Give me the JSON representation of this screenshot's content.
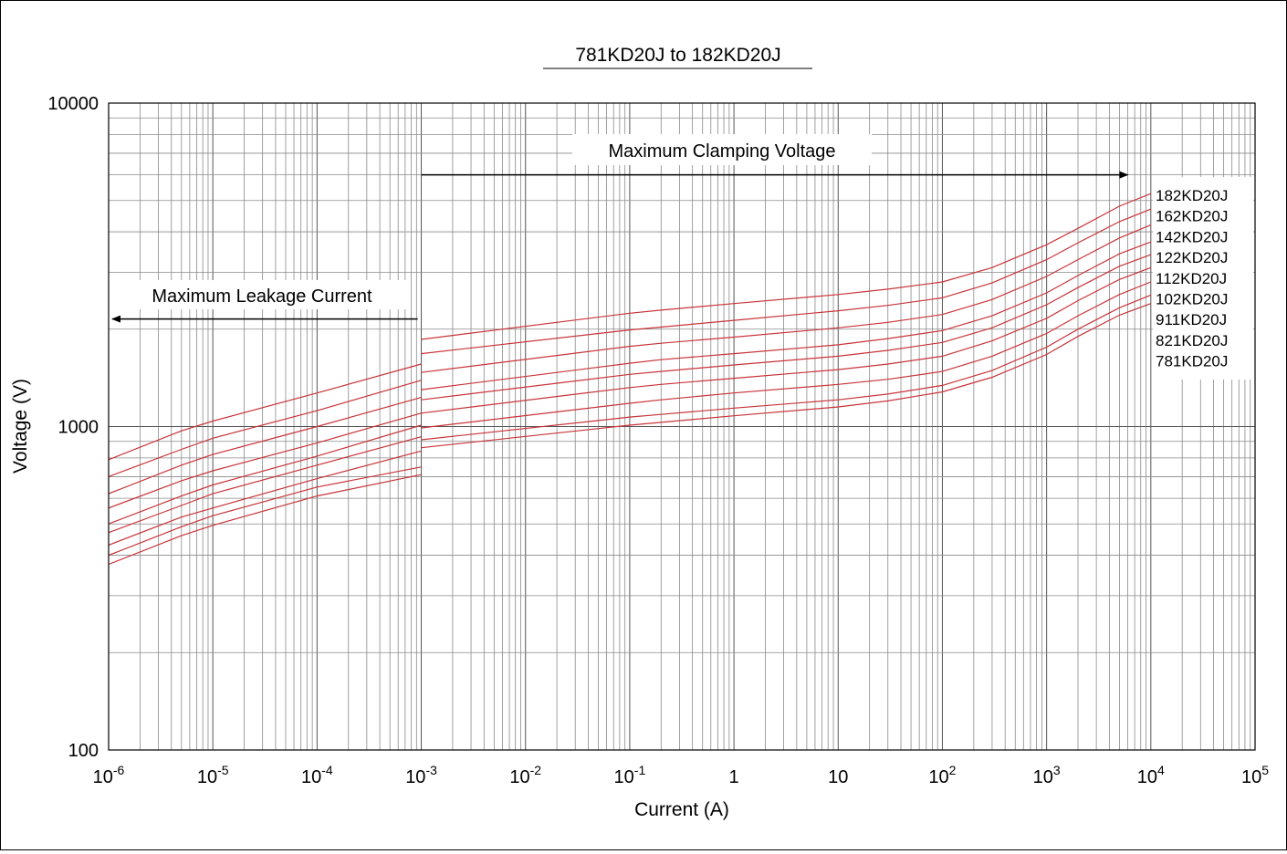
{
  "chart_data": {
    "type": "line",
    "title": "781KD20J to 182KD20J",
    "xlabel": "Current (A)",
    "ylabel": "Voltage (V)",
    "x_scale": "log",
    "y_scale": "log",
    "xlim": [
      1e-06,
      100000
    ],
    "ylim": [
      100,
      10000
    ],
    "grid": true,
    "x_ticks": [
      {
        "value": 1e-06,
        "base": "10",
        "exp": "-6"
      },
      {
        "value": 1e-05,
        "base": "10",
        "exp": "-5"
      },
      {
        "value": 0.0001,
        "base": "10",
        "exp": "-4"
      },
      {
        "value": 0.001,
        "base": "10",
        "exp": "-3"
      },
      {
        "value": 0.01,
        "base": "10",
        "exp": "-2"
      },
      {
        "value": 0.1,
        "base": "10",
        "exp": "-1"
      },
      {
        "value": 1,
        "base": "1",
        "exp": ""
      },
      {
        "value": 10,
        "base": "10",
        "exp": ""
      },
      {
        "value": 100,
        "base": "10",
        "exp": "2"
      },
      {
        "value": 1000,
        "base": "10",
        "exp": "3"
      },
      {
        "value": 10000,
        "base": "10",
        "exp": "4"
      },
      {
        "value": 100000,
        "base": "10",
        "exp": "5"
      }
    ],
    "y_ticks": [
      {
        "value": 100,
        "label": "100"
      },
      {
        "value": 1000,
        "label": "1000"
      },
      {
        "value": 10000,
        "label": "10000"
      }
    ],
    "annotations": {
      "clamping": {
        "text": "Maximum Clamping Voltage",
        "x_from": 0.001,
        "x_to": 6000,
        "y": 6000
      },
      "leakage": {
        "text": "Maximum Leakage Current",
        "x_from": 0.001,
        "x_to": 1e-06,
        "y": 2150
      }
    },
    "series_color": "#c8343a",
    "leakage_x": [
      1e-06,
      5e-06,
      1e-05,
      0.0001,
      0.001
    ],
    "clamping_x": [
      0.001,
      0.1,
      0.2,
      1,
      10,
      30,
      100,
      300,
      1000,
      2000,
      5000,
      10000
    ],
    "series": [
      {
        "name": "182KD20J",
        "leakage": [
          790,
          970,
          1040,
          1270,
          1560
        ],
        "clamping": [
          1860,
          2240,
          2290,
          2400,
          2560,
          2660,
          2800,
          3100,
          3650,
          4100,
          4800,
          5250
        ]
      },
      {
        "name": "162KD20J",
        "leakage": [
          700,
          850,
          920,
          1120,
          1390
        ],
        "clamping": [
          1680,
          1990,
          2030,
          2130,
          2280,
          2370,
          2500,
          2780,
          3280,
          3700,
          4300,
          4700
        ]
      },
      {
        "name": "142KD20J",
        "leakage": [
          620,
          760,
          820,
          1000,
          1230
        ],
        "clamping": [
          1470,
          1770,
          1810,
          1890,
          2020,
          2100,
          2220,
          2470,
          2910,
          3280,
          3830,
          4200
        ]
      },
      {
        "name": "122KD20J",
        "leakage": [
          560,
          680,
          730,
          890,
          1100
        ],
        "clamping": [
          1300,
          1570,
          1610,
          1680,
          1790,
          1870,
          1980,
          2200,
          2590,
          2930,
          3420,
          3720
        ]
      },
      {
        "name": "112KD20J",
        "leakage": [
          500,
          610,
          660,
          810,
          1010
        ],
        "clamping": [
          1210,
          1450,
          1480,
          1550,
          1650,
          1720,
          1820,
          2020,
          2380,
          2690,
          3130,
          3400
        ]
      },
      {
        "name": "102KD20J",
        "leakage": [
          470,
          570,
          620,
          760,
          930
        ],
        "clamping": [
          1100,
          1320,
          1350,
          1410,
          1500,
          1560,
          1650,
          1840,
          2160,
          2450,
          2850,
          3100
        ]
      },
      {
        "name": "911KD20J",
        "leakage": [
          430,
          525,
          560,
          690,
          840
        ],
        "clamping": [
          990,
          1180,
          1210,
          1270,
          1350,
          1400,
          1480,
          1650,
          1940,
          2200,
          2560,
          2800
        ]
      },
      {
        "name": "821KD20J",
        "leakage": [
          400,
          490,
          530,
          650,
          750
        ],
        "clamping": [
          910,
          1070,
          1090,
          1140,
          1210,
          1260,
          1340,
          1490,
          1760,
          2000,
          2330,
          2550
        ]
      },
      {
        "name": "781KD20J",
        "leakage": [
          375,
          460,
          495,
          610,
          710
        ],
        "clamping": [
          860,
          1010,
          1030,
          1080,
          1150,
          1200,
          1280,
          1420,
          1670,
          1900,
          2210,
          2400
        ]
      }
    ]
  }
}
